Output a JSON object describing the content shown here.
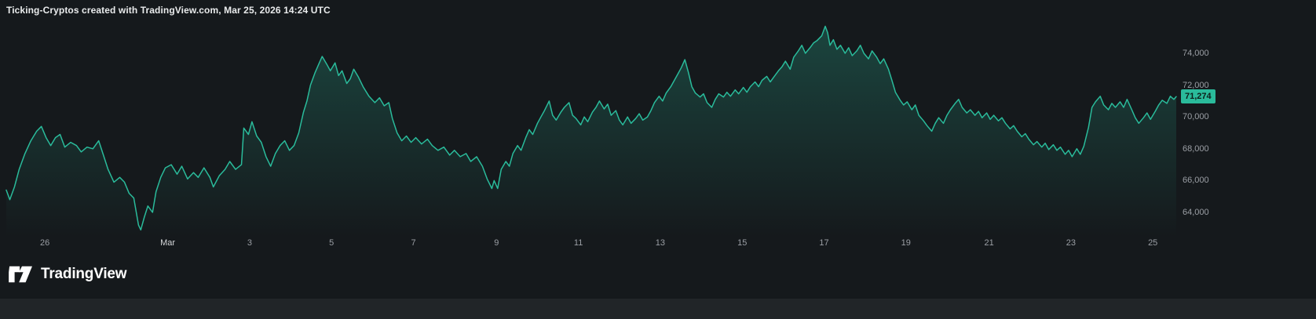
{
  "header": {
    "title": "Ticking-Cryptos created with TradingView.com, Mar 25, 2026 14:24 UTC"
  },
  "footer": {
    "brand": "TradingView",
    "logo": "tradingview-logo"
  },
  "colors": {
    "background": "#15191c",
    "bottom_bar": "#212528",
    "line": "#2abb9b",
    "fill_top": "rgba(42,187,155,0.28)",
    "fill_bottom": "rgba(42,187,155,0)",
    "axis_text": "#9b9fa5",
    "month_text": "#d5d7da",
    "title_text": "#e9ebec",
    "badge_bg": "#2abb9b",
    "badge_text": "#0d1f1a"
  },
  "chart_data": {
    "type": "area",
    "title": "Ticking-Cryptos",
    "xlabel": "",
    "ylabel": "",
    "legend": null,
    "grid": false,
    "last_price": 71274,
    "last_price_label": "71,274",
    "ylim": [
      62470,
      75970
    ],
    "y_ticks": [
      {
        "value": 64000,
        "label": "64,000"
      },
      {
        "value": 66000,
        "label": "66,000"
      },
      {
        "value": 68000,
        "label": "68,000"
      },
      {
        "value": 70000,
        "label": "70,000"
      },
      {
        "value": 72000,
        "label": "72,000"
      },
      {
        "value": 74000,
        "label": "74,000"
      }
    ],
    "x_ticks": [
      {
        "label": "26",
        "t": 0.033
      },
      {
        "label": "Mar",
        "t": 0.138,
        "month": true
      },
      {
        "label": "3",
        "t": 0.208
      },
      {
        "label": "5",
        "t": 0.278
      },
      {
        "label": "7",
        "t": 0.348
      },
      {
        "label": "9",
        "t": 0.419
      },
      {
        "label": "11",
        "t": 0.489
      },
      {
        "label": "13",
        "t": 0.559
      },
      {
        "label": "15",
        "t": 0.629
      },
      {
        "label": "17",
        "t": 0.699
      },
      {
        "label": "19",
        "t": 0.769
      },
      {
        "label": "21",
        "t": 0.84
      },
      {
        "label": "23",
        "t": 0.91
      },
      {
        "label": "25",
        "t": 0.98
      }
    ],
    "points": [
      [
        0.0,
        65400
      ],
      [
        0.003,
        64800
      ],
      [
        0.007,
        65600
      ],
      [
        0.011,
        66700
      ],
      [
        0.016,
        67700
      ],
      [
        0.021,
        68500
      ],
      [
        0.026,
        69100
      ],
      [
        0.03,
        69400
      ],
      [
        0.034,
        68700
      ],
      [
        0.038,
        68200
      ],
      [
        0.042,
        68700
      ],
      [
        0.046,
        68900
      ],
      [
        0.05,
        68100
      ],
      [
        0.055,
        68400
      ],
      [
        0.06,
        68200
      ],
      [
        0.064,
        67800
      ],
      [
        0.069,
        68100
      ],
      [
        0.074,
        68000
      ],
      [
        0.079,
        68500
      ],
      [
        0.083,
        67600
      ],
      [
        0.087,
        66700
      ],
      [
        0.092,
        65900
      ],
      [
        0.097,
        66200
      ],
      [
        0.101,
        65900
      ],
      [
        0.105,
        65200
      ],
      [
        0.109,
        64900
      ],
      [
        0.113,
        63200
      ],
      [
        0.115,
        62900
      ],
      [
        0.118,
        63700
      ],
      [
        0.121,
        64400
      ],
      [
        0.125,
        64000
      ],
      [
        0.128,
        65300
      ],
      [
        0.132,
        66200
      ],
      [
        0.136,
        66800
      ],
      [
        0.141,
        67000
      ],
      [
        0.146,
        66400
      ],
      [
        0.15,
        66900
      ],
      [
        0.155,
        66100
      ],
      [
        0.16,
        66500
      ],
      [
        0.164,
        66200
      ],
      [
        0.169,
        66800
      ],
      [
        0.174,
        66200
      ],
      [
        0.177,
        65600
      ],
      [
        0.182,
        66300
      ],
      [
        0.187,
        66700
      ],
      [
        0.191,
        67200
      ],
      [
        0.196,
        66700
      ],
      [
        0.201,
        67000
      ],
      [
        0.203,
        69300
      ],
      [
        0.207,
        68900
      ],
      [
        0.21,
        69700
      ],
      [
        0.214,
        68800
      ],
      [
        0.218,
        68400
      ],
      [
        0.222,
        67500
      ],
      [
        0.226,
        66900
      ],
      [
        0.23,
        67700
      ],
      [
        0.234,
        68200
      ],
      [
        0.238,
        68500
      ],
      [
        0.242,
        67900
      ],
      [
        0.246,
        68200
      ],
      [
        0.25,
        69000
      ],
      [
        0.254,
        70300
      ],
      [
        0.257,
        71000
      ],
      [
        0.26,
        72000
      ],
      [
        0.264,
        72800
      ],
      [
        0.267,
        73300
      ],
      [
        0.27,
        73800
      ],
      [
        0.274,
        73300
      ],
      [
        0.277,
        72900
      ],
      [
        0.281,
        73400
      ],
      [
        0.284,
        72600
      ],
      [
        0.287,
        72900
      ],
      [
        0.291,
        72100
      ],
      [
        0.294,
        72400
      ],
      [
        0.297,
        73000
      ],
      [
        0.301,
        72500
      ],
      [
        0.305,
        71900
      ],
      [
        0.31,
        71300
      ],
      [
        0.315,
        70900
      ],
      [
        0.319,
        71200
      ],
      [
        0.323,
        70700
      ],
      [
        0.327,
        70900
      ],
      [
        0.33,
        69900
      ],
      [
        0.334,
        69000
      ],
      [
        0.338,
        68500
      ],
      [
        0.342,
        68800
      ],
      [
        0.346,
        68400
      ],
      [
        0.35,
        68700
      ],
      [
        0.355,
        68300
      ],
      [
        0.36,
        68600
      ],
      [
        0.364,
        68200
      ],
      [
        0.369,
        67900
      ],
      [
        0.374,
        68100
      ],
      [
        0.379,
        67600
      ],
      [
        0.383,
        67900
      ],
      [
        0.388,
        67500
      ],
      [
        0.393,
        67700
      ],
      [
        0.397,
        67200
      ],
      [
        0.402,
        67500
      ],
      [
        0.407,
        66900
      ],
      [
        0.411,
        66100
      ],
      [
        0.415,
        65500
      ],
      [
        0.417,
        66000
      ],
      [
        0.42,
        65500
      ],
      [
        0.423,
        66700
      ],
      [
        0.427,
        67200
      ],
      [
        0.43,
        66900
      ],
      [
        0.433,
        67700
      ],
      [
        0.437,
        68200
      ],
      [
        0.44,
        67900
      ],
      [
        0.444,
        68700
      ],
      [
        0.447,
        69200
      ],
      [
        0.45,
        68900
      ],
      [
        0.454,
        69600
      ],
      [
        0.457,
        70000
      ],
      [
        0.46,
        70400
      ],
      [
        0.464,
        71000
      ],
      [
        0.467,
        70100
      ],
      [
        0.47,
        69800
      ],
      [
        0.474,
        70300
      ],
      [
        0.477,
        70600
      ],
      [
        0.481,
        70900
      ],
      [
        0.484,
        70100
      ],
      [
        0.487,
        69900
      ],
      [
        0.491,
        69500
      ],
      [
        0.494,
        70000
      ],
      [
        0.497,
        69700
      ],
      [
        0.501,
        70300
      ],
      [
        0.504,
        70600
      ],
      [
        0.507,
        71000
      ],
      [
        0.511,
        70500
      ],
      [
        0.514,
        70800
      ],
      [
        0.517,
        70100
      ],
      [
        0.521,
        70400
      ],
      [
        0.524,
        69800
      ],
      [
        0.527,
        69500
      ],
      [
        0.531,
        70000
      ],
      [
        0.534,
        69600
      ],
      [
        0.538,
        69900
      ],
      [
        0.541,
        70200
      ],
      [
        0.544,
        69800
      ],
      [
        0.548,
        70000
      ],
      [
        0.551,
        70400
      ],
      [
        0.554,
        70900
      ],
      [
        0.558,
        71300
      ],
      [
        0.561,
        71000
      ],
      [
        0.564,
        71500
      ],
      [
        0.568,
        71900
      ],
      [
        0.571,
        72300
      ],
      [
        0.574,
        72700
      ],
      [
        0.577,
        73100
      ],
      [
        0.58,
        73600
      ],
      [
        0.583,
        72800
      ],
      [
        0.586,
        71900
      ],
      [
        0.589,
        71500
      ],
      [
        0.593,
        71250
      ],
      [
        0.596,
        71450
      ],
      [
        0.599,
        70900
      ],
      [
        0.603,
        70600
      ],
      [
        0.606,
        71100
      ],
      [
        0.609,
        71450
      ],
      [
        0.613,
        71250
      ],
      [
        0.616,
        71550
      ],
      [
        0.619,
        71300
      ],
      [
        0.623,
        71700
      ],
      [
        0.626,
        71450
      ],
      [
        0.63,
        71850
      ],
      [
        0.633,
        71550
      ],
      [
        0.636,
        71900
      ],
      [
        0.64,
        72200
      ],
      [
        0.643,
        71900
      ],
      [
        0.646,
        72300
      ],
      [
        0.65,
        72550
      ],
      [
        0.653,
        72200
      ],
      [
        0.656,
        72500
      ],
      [
        0.66,
        72900
      ],
      [
        0.663,
        73150
      ],
      [
        0.666,
        73500
      ],
      [
        0.67,
        73000
      ],
      [
        0.673,
        73750
      ],
      [
        0.677,
        74150
      ],
      [
        0.68,
        74500
      ],
      [
        0.683,
        74000
      ],
      [
        0.687,
        74350
      ],
      [
        0.69,
        74650
      ],
      [
        0.693,
        74800
      ],
      [
        0.697,
        75100
      ],
      [
        0.7,
        75700
      ],
      [
        0.702,
        75300
      ],
      [
        0.704,
        74500
      ],
      [
        0.707,
        74850
      ],
      [
        0.71,
        74250
      ],
      [
        0.713,
        74500
      ],
      [
        0.717,
        74000
      ],
      [
        0.72,
        74350
      ],
      [
        0.723,
        73850
      ],
      [
        0.727,
        74150
      ],
      [
        0.73,
        74500
      ],
      [
        0.733,
        74000
      ],
      [
        0.737,
        73650
      ],
      [
        0.74,
        74150
      ],
      [
        0.744,
        73750
      ],
      [
        0.747,
        73350
      ],
      [
        0.75,
        73650
      ],
      [
        0.754,
        73000
      ],
      [
        0.757,
        72300
      ],
      [
        0.76,
        71550
      ],
      [
        0.764,
        71050
      ],
      [
        0.767,
        70750
      ],
      [
        0.77,
        70950
      ],
      [
        0.774,
        70450
      ],
      [
        0.777,
        70750
      ],
      [
        0.78,
        70100
      ],
      [
        0.784,
        69750
      ],
      [
        0.787,
        69450
      ],
      [
        0.791,
        69100
      ],
      [
        0.794,
        69600
      ],
      [
        0.797,
        69950
      ],
      [
        0.801,
        69600
      ],
      [
        0.804,
        70100
      ],
      [
        0.807,
        70450
      ],
      [
        0.811,
        70850
      ],
      [
        0.814,
        71100
      ],
      [
        0.817,
        70600
      ],
      [
        0.821,
        70250
      ],
      [
        0.824,
        70450
      ],
      [
        0.828,
        70100
      ],
      [
        0.831,
        70350
      ],
      [
        0.834,
        69950
      ],
      [
        0.838,
        70250
      ],
      [
        0.841,
        69850
      ],
      [
        0.844,
        70100
      ],
      [
        0.848,
        69750
      ],
      [
        0.851,
        69950
      ],
      [
        0.854,
        69600
      ],
      [
        0.858,
        69250
      ],
      [
        0.861,
        69450
      ],
      [
        0.864,
        69100
      ],
      [
        0.868,
        68750
      ],
      [
        0.871,
        68950
      ],
      [
        0.874,
        68600
      ],
      [
        0.878,
        68250
      ],
      [
        0.881,
        68450
      ],
      [
        0.885,
        68100
      ],
      [
        0.888,
        68350
      ],
      [
        0.891,
        67950
      ],
      [
        0.895,
        68250
      ],
      [
        0.898,
        67900
      ],
      [
        0.901,
        68100
      ],
      [
        0.905,
        67650
      ],
      [
        0.908,
        67900
      ],
      [
        0.911,
        67500
      ],
      [
        0.915,
        68000
      ],
      [
        0.918,
        67650
      ],
      [
        0.921,
        68150
      ],
      [
        0.925,
        69350
      ],
      [
        0.928,
        70600
      ],
      [
        0.931,
        70950
      ],
      [
        0.935,
        71300
      ],
      [
        0.938,
        70750
      ],
      [
        0.942,
        70450
      ],
      [
        0.945,
        70850
      ],
      [
        0.948,
        70600
      ],
      [
        0.952,
        70950
      ],
      [
        0.955,
        70600
      ],
      [
        0.958,
        71100
      ],
      [
        0.962,
        70450
      ],
      [
        0.965,
        69950
      ],
      [
        0.968,
        69600
      ],
      [
        0.972,
        69950
      ],
      [
        0.975,
        70250
      ],
      [
        0.978,
        69850
      ],
      [
        0.982,
        70350
      ],
      [
        0.985,
        70750
      ],
      [
        0.988,
        71050
      ],
      [
        0.992,
        70850
      ],
      [
        0.995,
        71300
      ],
      [
        0.998,
        71100
      ],
      [
        1.0,
        71274
      ]
    ]
  }
}
